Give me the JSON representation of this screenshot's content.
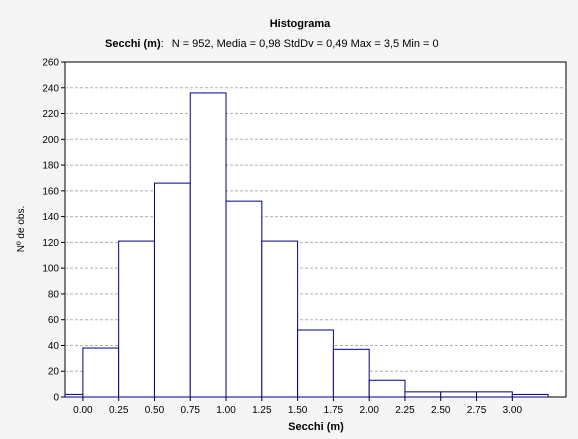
{
  "chart_data": {
    "type": "bar",
    "title": "Histograma",
    "subtitle_label": "Secchi (m)",
    "subtitle_sep": ":",
    "subtitle_stats": "N = 952, Media = 0,98 StdDv = 0,49 Max = 3,5 Min = 0",
    "xlabel": "Secchi (m)",
    "ylabel": "Nº de obs.",
    "ylim": [
      0,
      260
    ],
    "yticks": [
      0,
      20,
      40,
      60,
      80,
      100,
      120,
      140,
      160,
      180,
      200,
      220,
      240,
      260
    ],
    "xlim": [
      -0.125,
      3.375
    ],
    "xtick_values": [
      0,
      0.25,
      0.5,
      0.75,
      1.0,
      1.25,
      1.5,
      1.75,
      2.0,
      2.25,
      2.5,
      2.75,
      3.0
    ],
    "xtick_labels": [
      "0.00",
      "0.25",
      "0.50",
      "0.75",
      "1.00",
      "1.25",
      "1.50",
      "1.75",
      "2.00",
      "2.25",
      "2.50",
      "2.75",
      "3.00"
    ],
    "bin_width": 0.25,
    "bin_starts": [
      -0.125,
      0,
      0.25,
      0.5,
      0.75,
      1.0,
      1.25,
      1.5,
      1.75,
      2.0,
      2.25,
      2.5,
      2.75,
      3.0
    ],
    "values": [
      2,
      38,
      121,
      166,
      236,
      152,
      121,
      52,
      37,
      13,
      4,
      4,
      4,
      2
    ],
    "grid": true,
    "bar_color": "#000080"
  }
}
